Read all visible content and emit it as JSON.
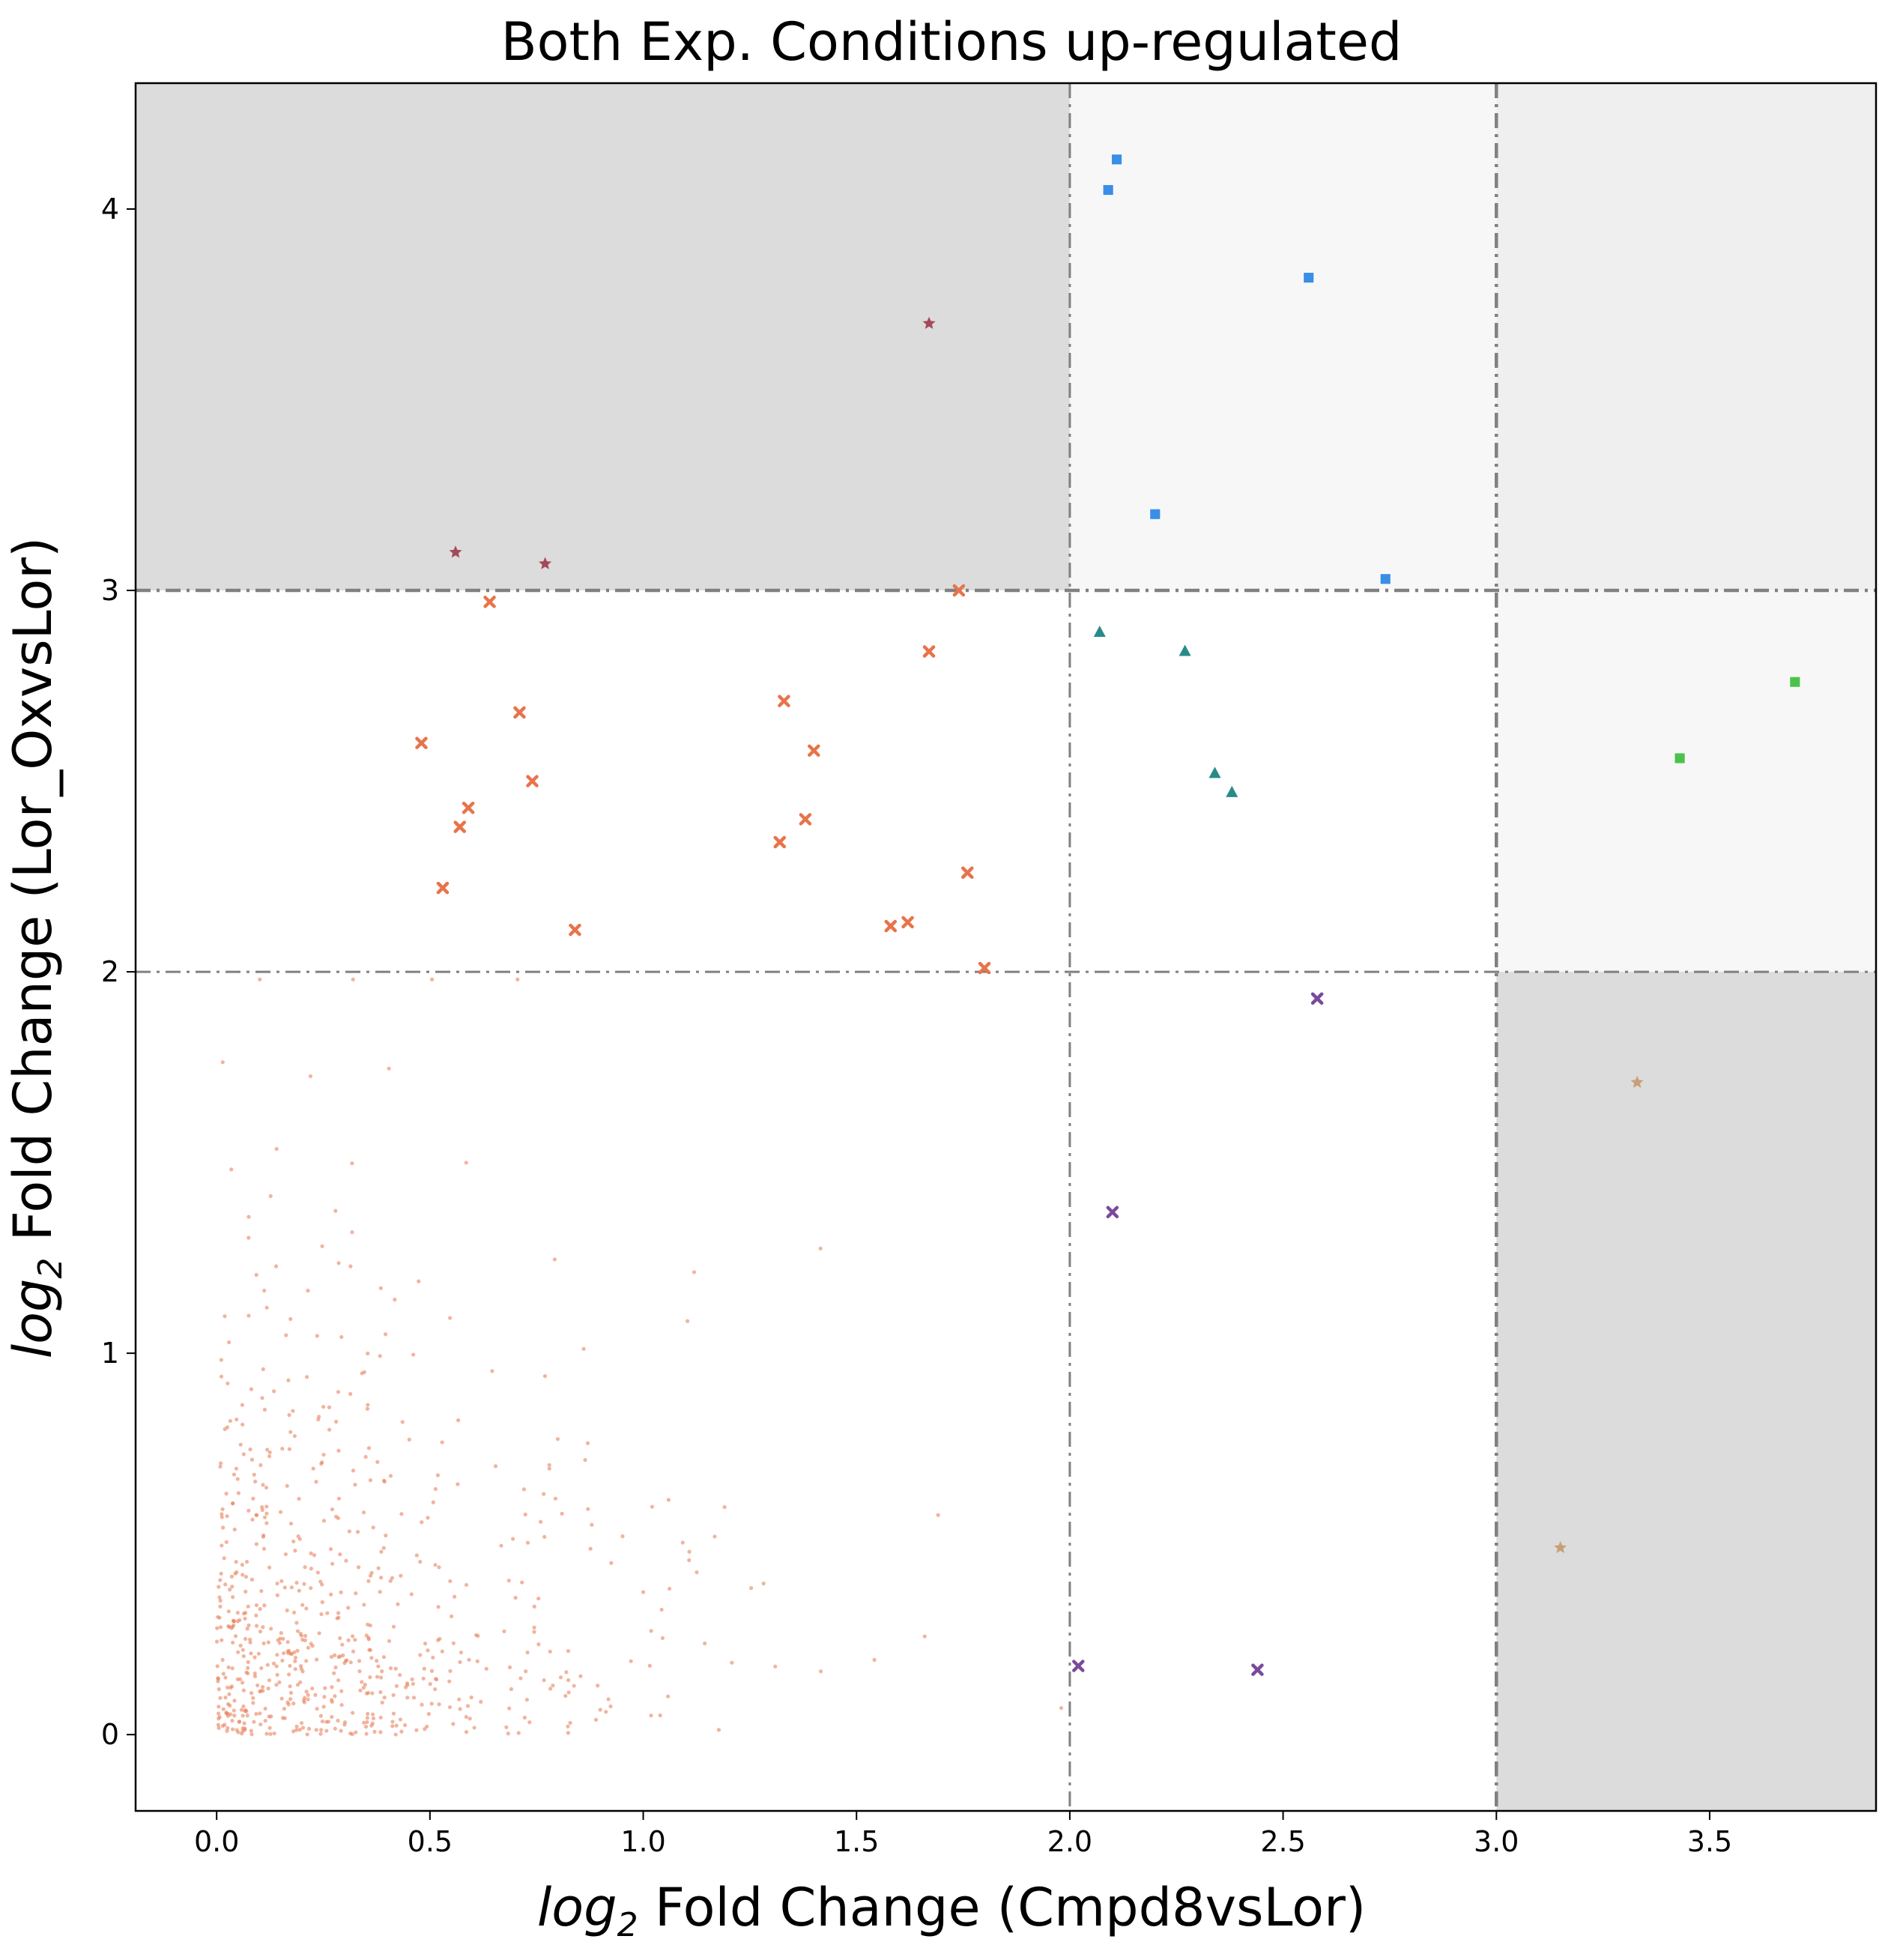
{
  "chart_data": {
    "type": "scatter",
    "title": "Both Exp. Conditions up-regulated",
    "xlabel": {
      "pre": "log",
      "sub": "2",
      "post": " Fold Change (Cmpd8vsLor)"
    },
    "ylabel": {
      "pre": "log",
      "sub": "2",
      "post": " Fold Change (Lor_OxvsLor)"
    },
    "xlim": [
      -0.19,
      3.89
    ],
    "ylim": [
      -0.2,
      4.33
    ],
    "xticks": [
      "0.0",
      "0.5",
      "1.0",
      "1.5",
      "2.0",
      "2.5",
      "3.0",
      "3.5"
    ],
    "xtick_values": [
      0,
      0.5,
      1.0,
      1.5,
      2.0,
      2.5,
      3.0,
      3.5
    ],
    "yticks": [
      "0",
      "1",
      "2",
      "3",
      "4"
    ],
    "ytick_values": [
      0,
      1,
      2,
      3,
      4
    ],
    "grid": false,
    "thresholds": {
      "x": [
        2,
        3
      ],
      "y": [
        2,
        3
      ]
    },
    "shaded_regions": [
      {
        "x": [
          -0.19,
          2
        ],
        "y": [
          3,
          4.33
        ],
        "color": "#dcdcdc"
      },
      {
        "x": [
          2,
          3
        ],
        "y": [
          3,
          4.33
        ],
        "color": "#f7f7f7"
      },
      {
        "x": [
          3,
          3.89
        ],
        "y": [
          2,
          3
        ],
        "color": "#f7f7f7"
      },
      {
        "x": [
          3,
          3.89
        ],
        "y": [
          4.33,
          4.33
        ],
        "color": "#efefef"
      },
      {
        "x": [
          3,
          3.89
        ],
        "y": [
          -0.2,
          2
        ],
        "color": "#dcdcdc"
      }
    ],
    "background_points": {
      "color": "#e8825e",
      "description_count": 700
    },
    "series": [
      {
        "marker": "x",
        "color": "#e8734a",
        "points": [
          [
            0.48,
            2.6
          ],
          [
            0.53,
            2.22
          ],
          [
            0.57,
            2.38
          ],
          [
            0.59,
            2.43
          ],
          [
            0.64,
            2.97
          ],
          [
            0.71,
            2.68
          ],
          [
            0.74,
            2.5
          ],
          [
            0.84,
            2.11
          ],
          [
            1.32,
            2.34
          ],
          [
            1.33,
            2.71
          ],
          [
            1.38,
            2.4
          ],
          [
            1.4,
            2.58
          ],
          [
            1.58,
            2.12
          ],
          [
            1.62,
            2.13
          ],
          [
            1.67,
            2.84
          ],
          [
            1.74,
            3.0
          ],
          [
            1.76,
            2.26
          ],
          [
            1.8,
            2.01
          ]
        ]
      },
      {
        "marker": "star",
        "color": "#a34a5a",
        "points": [
          [
            0.56,
            3.1
          ],
          [
            0.77,
            3.07
          ],
          [
            1.67,
            3.7
          ]
        ]
      },
      {
        "marker": "square",
        "color": "#3a8ee6",
        "points": [
          [
            2.09,
            4.05
          ],
          [
            2.11,
            4.13
          ],
          [
            2.2,
            3.2
          ],
          [
            2.56,
            3.82
          ],
          [
            2.74,
            3.03
          ]
        ]
      },
      {
        "marker": "triangle",
        "color": "#2a8a8a",
        "points": [
          [
            2.07,
            2.89
          ],
          [
            2.27,
            2.84
          ],
          [
            2.34,
            2.52
          ],
          [
            2.38,
            2.47
          ]
        ]
      },
      {
        "marker": "square",
        "color": "#4cc24c",
        "points": [
          [
            3.43,
            2.56
          ],
          [
            3.7,
            2.76
          ]
        ]
      },
      {
        "marker": "x",
        "color": "#7a4a9a",
        "points": [
          [
            2.02,
            0.18
          ],
          [
            2.1,
            1.37
          ],
          [
            2.44,
            0.17
          ],
          [
            2.58,
            1.93
          ]
        ]
      },
      {
        "marker": "star",
        "color": "#c8a078",
        "points": [
          [
            3.15,
            0.49
          ],
          [
            3.33,
            1.71
          ]
        ]
      }
    ]
  }
}
